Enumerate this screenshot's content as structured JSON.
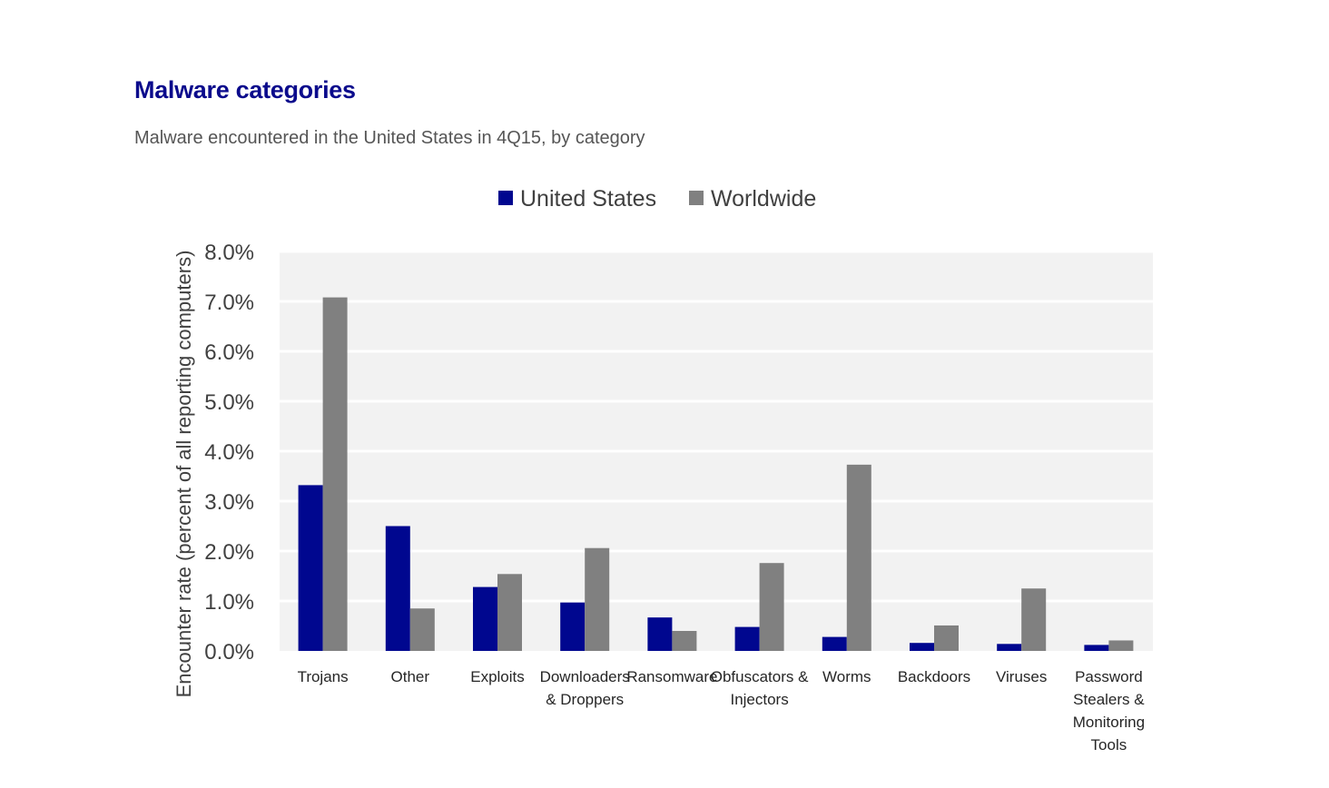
{
  "header": {
    "title": "Malware categories",
    "subtitle": "Malware encountered in the United States in 4Q15, by category"
  },
  "colors": {
    "united_states": "#00078f",
    "worldwide": "#808080",
    "plot_background": "#f2f2f2",
    "gridline": "#ffffff",
    "title": "#0b0b8c"
  },
  "chart_data": {
    "type": "bar",
    "title": "Malware categories",
    "subtitle": "Malware encountered in the United States in 4Q15, by category",
    "xlabel": "",
    "ylabel": "Encounter rate (percent of all reporting computers)",
    "ylim": [
      0,
      8
    ],
    "yticks": [
      "0.0%",
      "1.0%",
      "2.0%",
      "3.0%",
      "4.0%",
      "5.0%",
      "6.0%",
      "7.0%",
      "8.0%"
    ],
    "grid": true,
    "legend_position": "top-center",
    "categories": [
      [
        "Trojans"
      ],
      [
        "Other"
      ],
      [
        "Exploits"
      ],
      [
        "Downloaders",
        "& Droppers"
      ],
      [
        "Ransomware"
      ],
      [
        "Obfuscators &",
        "Injectors"
      ],
      [
        "Worms"
      ],
      [
        "Backdoors"
      ],
      [
        "Viruses"
      ],
      [
        "Password",
        "Stealers &",
        "Monitoring",
        "Tools"
      ]
    ],
    "series": [
      {
        "name": "United States",
        "color": "#00078f",
        "values": [
          3.32,
          2.5,
          1.28,
          0.97,
          0.67,
          0.48,
          0.28,
          0.16,
          0.14,
          0.12
        ]
      },
      {
        "name": "Worldwide",
        "color": "#808080",
        "values": [
          7.08,
          0.85,
          1.54,
          2.06,
          0.4,
          1.76,
          3.73,
          0.51,
          1.25,
          0.21
        ]
      }
    ]
  }
}
